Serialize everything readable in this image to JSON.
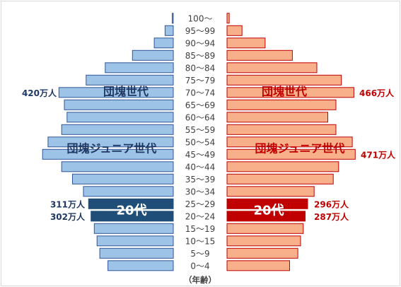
{
  "chart_data": {
    "type": "bar",
    "subtype": "population-pyramid",
    "unit": "万人",
    "age_groups": [
      "100～",
      "95～99",
      "90～94",
      "85～89",
      "80～84",
      "75～79",
      "70～74",
      "65～69",
      "60～64",
      "55～59",
      "50～54",
      "45～49",
      "40～44",
      "35～39",
      "30～34",
      "25～29",
      "20～24",
      "15～19",
      "10～15",
      "5～9",
      "0～4"
    ],
    "series": [
      {
        "side": "left",
        "values": [
          4,
          30,
          70,
          150,
          250,
          320,
          420,
          400,
          390,
          410,
          460,
          480,
          410,
          370,
          330,
          311,
          302,
          290,
          280,
          270,
          240
        ]
      },
      {
        "side": "right",
        "values": [
          8,
          55,
          140,
          240,
          330,
          420,
          466,
          400,
          370,
          400,
          460,
          471,
          410,
          390,
          320,
          296,
          287,
          280,
          270,
          260,
          230
        ]
      }
    ],
    "highlight_groups": [
      "25～29",
      "20～24"
    ],
    "axis_label": "（年齢）",
    "annotations": {
      "left_dankai": "団塊世代",
      "left_junior": "団塊ジュニア世代",
      "left_20s": "20代",
      "right_dankai": "団塊世代",
      "right_junior": "団塊ジュニア世代",
      "right_20s": "20代",
      "left_70_74_value": "420万人",
      "right_70_74_value": "466万人",
      "right_45_49_value": "471万人",
      "left_25_29_value": "311万人",
      "left_20_24_value": "302万人",
      "right_25_29_value": "296万人",
      "right_20_24_value": "287万人"
    },
    "colors": {
      "left_bar": "#9dc3e6",
      "left_bar_stroke": "#2f5597",
      "left_highlight": "#1f4e79",
      "left_text": "#1f3864",
      "right_bar": "#f8b08b",
      "right_bar_stroke": "#c00000",
      "right_highlight": "#c00000",
      "right_text": "#c00000",
      "axis_text": "#404040",
      "highlight_text": "#ffffff"
    }
  }
}
